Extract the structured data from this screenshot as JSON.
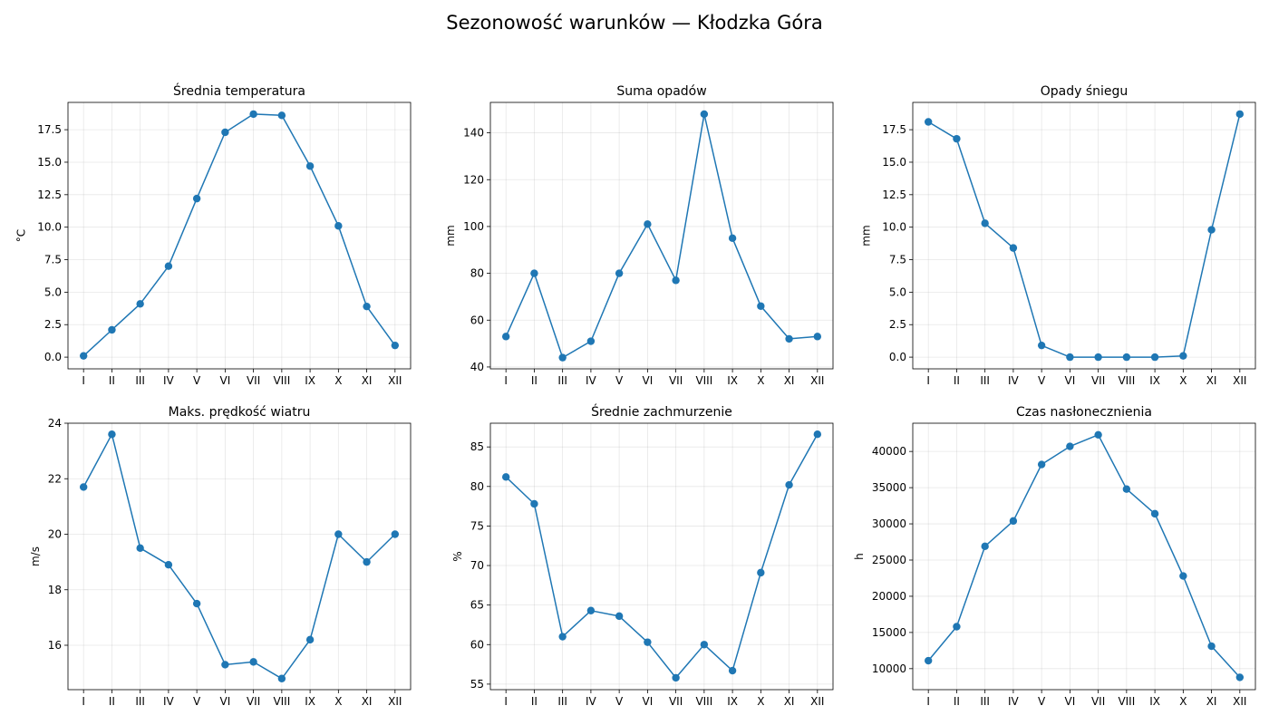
{
  "figure": {
    "title": "Sezonowość warunków — Kłodzka Góra"
  },
  "colors": {
    "series": "#1f77b4"
  },
  "chart_data": [
    {
      "type": "line",
      "title": "Średnia temperatura",
      "ylabel": "°C",
      "xlabel": "",
      "categories": [
        "I",
        "II",
        "III",
        "IV",
        "V",
        "VI",
        "VII",
        "VIII",
        "IX",
        "X",
        "XI",
        "XII"
      ],
      "values": [
        0.1,
        2.1,
        4.1,
        7.0,
        12.2,
        17.3,
        18.7,
        18.6,
        14.7,
        10.1,
        3.9,
        0.9
      ],
      "ylim": [
        -0.9,
        19.6
      ],
      "yticks": [
        0.0,
        2.5,
        5.0,
        7.5,
        10.0,
        12.5,
        15.0,
        17.5
      ],
      "ytick_labels": [
        "0.0",
        "2.5",
        "5.0",
        "7.5",
        "10.0",
        "12.5",
        "15.0",
        "17.5"
      ],
      "grid": true
    },
    {
      "type": "line",
      "title": "Suma opadów",
      "ylabel": "mm",
      "xlabel": "",
      "categories": [
        "I",
        "II",
        "III",
        "IV",
        "V",
        "VI",
        "VII",
        "VIII",
        "IX",
        "X",
        "XI",
        "XII"
      ],
      "values": [
        53,
        80,
        44,
        51,
        80,
        101,
        77,
        148,
        95,
        66,
        52,
        53
      ],
      "ylim": [
        39.2,
        153.0
      ],
      "yticks": [
        40,
        60,
        80,
        100,
        120,
        140
      ],
      "ytick_labels": [
        "40",
        "60",
        "80",
        "100",
        "120",
        "140"
      ],
      "grid": true
    },
    {
      "type": "line",
      "title": "Opady śniegu",
      "ylabel": "mm",
      "xlabel": "",
      "categories": [
        "I",
        "II",
        "III",
        "IV",
        "V",
        "VI",
        "VII",
        "VIII",
        "IX",
        "X",
        "XI",
        "XII"
      ],
      "values": [
        18.1,
        16.8,
        10.3,
        8.4,
        0.9,
        0.0,
        0.0,
        0.0,
        0.0,
        0.1,
        9.8,
        18.7
      ],
      "ylim": [
        -0.9,
        19.6
      ],
      "yticks": [
        0.0,
        2.5,
        5.0,
        7.5,
        10.0,
        12.5,
        15.0,
        17.5
      ],
      "ytick_labels": [
        "0.0",
        "2.5",
        "5.0",
        "7.5",
        "10.0",
        "12.5",
        "15.0",
        "17.5"
      ],
      "grid": true
    },
    {
      "type": "line",
      "title": "Maks. prędkość wiatru",
      "ylabel": "m/s",
      "xlabel": "",
      "categories": [
        "I",
        "II",
        "III",
        "IV",
        "V",
        "VI",
        "VII",
        "VIII",
        "IX",
        "X",
        "XI",
        "XII"
      ],
      "values": [
        21.7,
        23.6,
        19.5,
        18.9,
        17.5,
        15.3,
        15.4,
        14.8,
        16.2,
        20.0,
        19.0,
        20.0
      ],
      "ylim": [
        14.4,
        24.0
      ],
      "yticks": [
        16,
        18,
        20,
        22,
        24
      ],
      "ytick_labels": [
        "16",
        "18",
        "20",
        "22",
        "24"
      ],
      "grid": true
    },
    {
      "type": "line",
      "title": "Średnie zachmurzenie",
      "ylabel": "%",
      "xlabel": "",
      "categories": [
        "I",
        "II",
        "III",
        "IV",
        "V",
        "VI",
        "VII",
        "VIII",
        "IX",
        "X",
        "XI",
        "XII"
      ],
      "values": [
        81.2,
        77.8,
        61.0,
        64.3,
        63.6,
        60.3,
        55.8,
        60.0,
        56.7,
        69.1,
        80.2,
        86.6
      ],
      "ylim": [
        54.3,
        88.0
      ],
      "yticks": [
        55,
        60,
        65,
        70,
        75,
        80,
        85
      ],
      "ytick_labels": [
        "55",
        "60",
        "65",
        "70",
        "75",
        "80",
        "85"
      ],
      "grid": true
    },
    {
      "type": "line",
      "title": "Czas nasłonecznienia",
      "ylabel": "h",
      "xlabel": "",
      "categories": [
        "I",
        "II",
        "III",
        "IV",
        "V",
        "VI",
        "VII",
        "VIII",
        "IX",
        "X",
        "XI",
        "XII"
      ],
      "values": [
        11100,
        15800,
        26900,
        30400,
        38200,
        40700,
        42300,
        34800,
        31400,
        22800,
        13100,
        8800
      ],
      "ylim": [
        7100,
        43900
      ],
      "yticks": [
        10000,
        15000,
        20000,
        25000,
        30000,
        35000,
        40000
      ],
      "ytick_labels": [
        "10000",
        "15000",
        "20000",
        "25000",
        "30000",
        "35000",
        "40000"
      ],
      "grid": true
    }
  ]
}
